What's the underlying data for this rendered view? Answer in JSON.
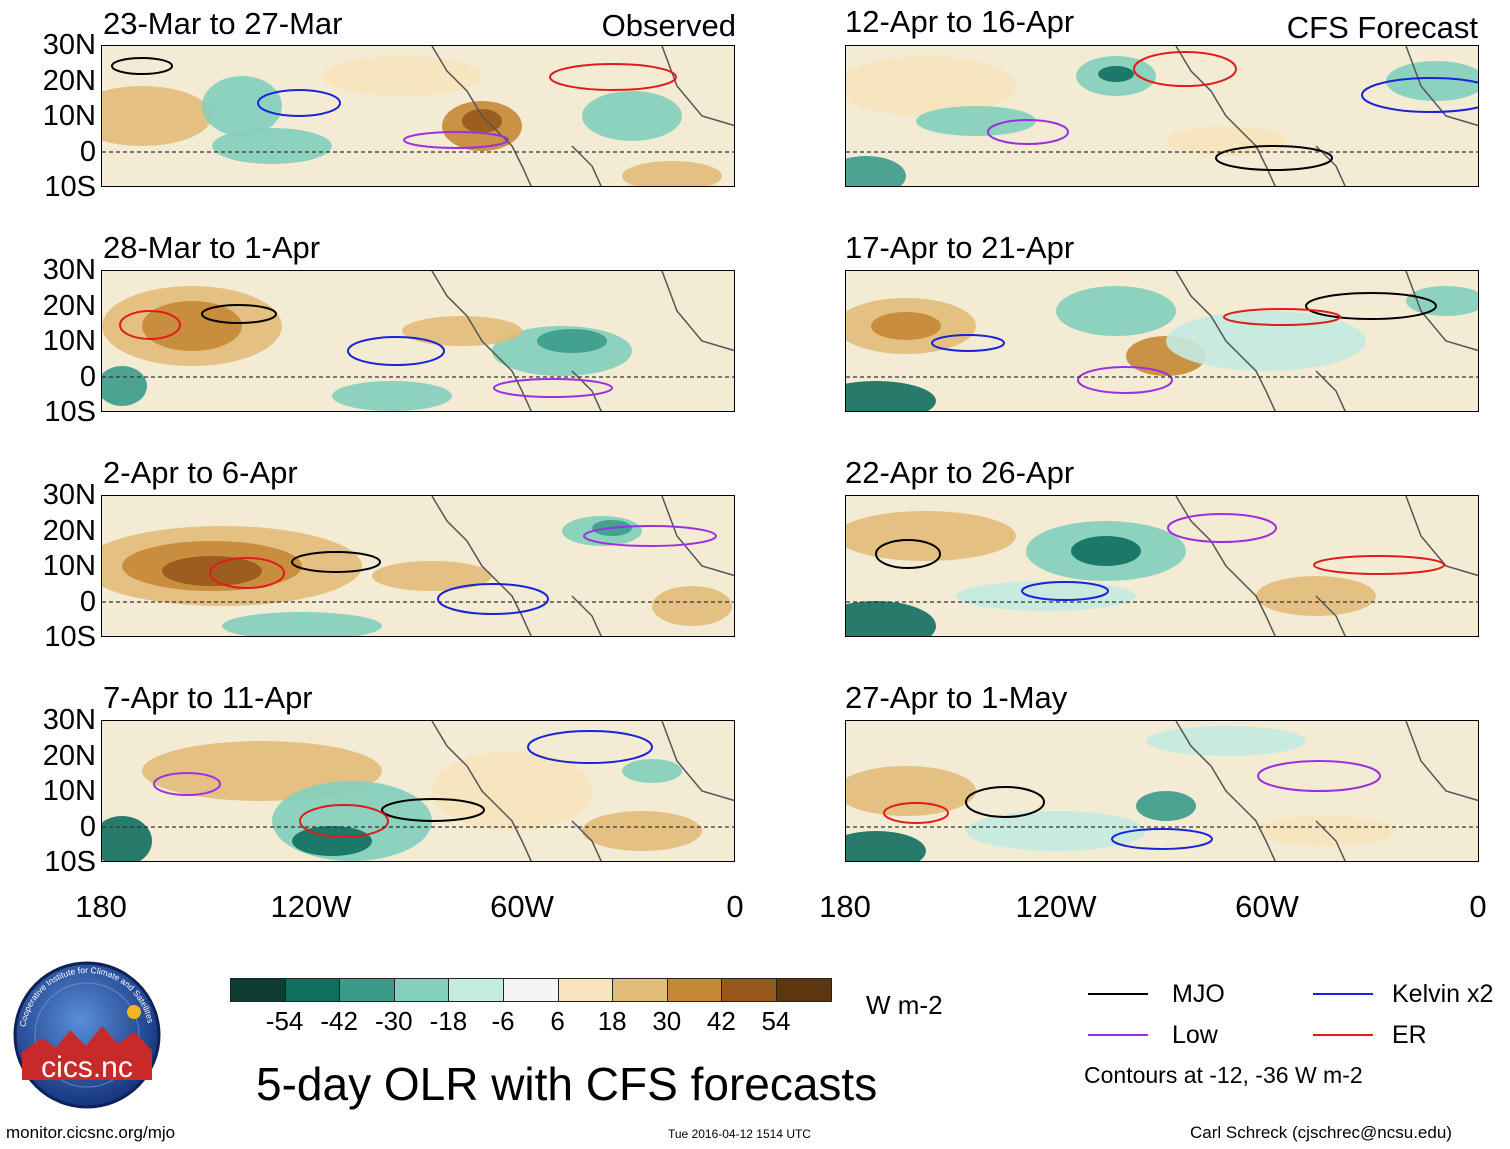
{
  "title": "5-day OLR with CFS forecasts",
  "column_labels": {
    "observed": "Observed",
    "forecast": "CFS Forecast"
  },
  "panels": [
    {
      "label": "23-Mar to 27-Mar",
      "column": "observed"
    },
    {
      "label": "28-Mar to 1-Apr",
      "column": "observed"
    },
    {
      "label": "2-Apr to 6-Apr",
      "column": "observed"
    },
    {
      "label": "7-Apr to 11-Apr",
      "column": "observed"
    },
    {
      "label": "12-Apr to 16-Apr",
      "column": "forecast"
    },
    {
      "label": "17-Apr to 21-Apr",
      "column": "forecast"
    },
    {
      "label": "22-Apr to 26-Apr",
      "column": "forecast"
    },
    {
      "label": "27-Apr to 1-May",
      "column": "forecast"
    }
  ],
  "lat_labels": [
    "30N",
    "20N",
    "10N",
    "0",
    "10S"
  ],
  "lon_labels": [
    "180",
    "120W",
    "60W",
    "0"
  ],
  "colorbar": {
    "units": "W m-2",
    "labels": [
      "-54",
      "-42",
      "-30",
      "-18",
      "-6",
      "6",
      "18",
      "30",
      "42",
      "54"
    ],
    "colors": [
      "#0e3d34",
      "#0f6f5f",
      "#3a9b89",
      "#82cfbb",
      "#c4ebe0",
      "#f5f5f5",
      "#f7e4bc",
      "#e2bd79",
      "#c58835",
      "#97581c",
      "#5c3710"
    ]
  },
  "legend": {
    "items": [
      {
        "label": "MJO",
        "color": "#000000"
      },
      {
        "label": "Kelvin x2",
        "color": "#1a23d6"
      },
      {
        "label": "Low",
        "color": "#9b30e0"
      },
      {
        "label": "ER",
        "color": "#e01b1b"
      }
    ],
    "note": "Contours at -12, -36 W m-2"
  },
  "logo": {
    "text": "cics.nc",
    "ring_text": "Cooperative Institute for Climate and Satellites"
  },
  "footer": {
    "url": "monitor.cicsnc.org/mjo",
    "timestamp": "Tue 2016-04-12 1514 UTC",
    "credit": "Carl Schreck (cjschrec@ncsu.edu)"
  }
}
